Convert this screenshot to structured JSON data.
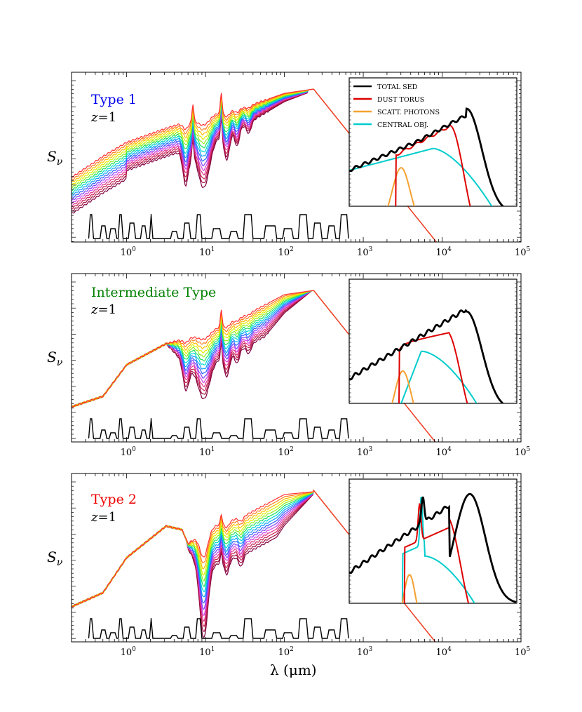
{
  "figure": {
    "x_axis_label": "λ (μm)",
    "y_axis_label": "S",
    "y_axis_label_sub": "ν",
    "x_ticks": [
      {
        "base": "10",
        "exp": "0"
      },
      {
        "base": "10",
        "exp": "1"
      },
      {
        "base": "10",
        "exp": "2"
      },
      {
        "base": "10",
        "exp": "3"
      },
      {
        "base": "10",
        "exp": "4"
      },
      {
        "base": "10",
        "exp": "5"
      }
    ],
    "redshift_label": "z",
    "redshift_value": "=1"
  },
  "colors": {
    "total": "#000000",
    "torus": "#dd0000",
    "scatt": "#f5a030",
    "central": "#00cccc",
    "type1_title": "#0000ee",
    "intermediate_title": "#008000",
    "type2_title": "#ee0000"
  },
  "legend": {
    "items": [
      {
        "label": "TOTAL SED",
        "color": "#000000"
      },
      {
        "label": "DUST TORUS",
        "color": "#dd0000"
      },
      {
        "label": "SCATT. PHOTONS",
        "color": "#f5a030"
      },
      {
        "label": "CENTRAL OBJ.",
        "color": "#00cccc"
      }
    ]
  },
  "panels": [
    {
      "title": "Type 1",
      "title_color": "#0000ee"
    },
    {
      "title": "Intermediate Type",
      "title_color": "#008000"
    },
    {
      "title": "Type 2",
      "title_color": "#ee0000"
    }
  ],
  "chart_data": [
    {
      "type": "line",
      "title": "Type 1",
      "xlabel": "λ (μm)",
      "ylabel": "Sν",
      "xscale": "log",
      "xlim": [
        0.2,
        100000
      ],
      "x_ticks": [
        1,
        10,
        100,
        1000,
        10000,
        100000
      ],
      "series_count": 15,
      "peak_wavelength": 230,
      "legend_position": "inset top-right",
      "inset_series": [
        "TOTAL SED",
        "DUST TORUS",
        "SCATT. PHOTONS",
        "CENTRAL OBJ."
      ]
    },
    {
      "type": "line",
      "title": "Intermediate Type",
      "xlabel": "λ (μm)",
      "ylabel": "Sν",
      "xscale": "log",
      "xlim": [
        0.2,
        100000
      ],
      "x_ticks": [
        1,
        10,
        100,
        1000,
        10000,
        100000
      ],
      "series_count": 15,
      "peak_wavelength": 230,
      "inset_series": [
        "TOTAL SED",
        "DUST TORUS",
        "SCATT. PHOTONS",
        "CENTRAL OBJ."
      ]
    },
    {
      "type": "line",
      "title": "Type 2",
      "xlabel": "λ (μm)",
      "ylabel": "Sν",
      "xscale": "log",
      "xlim": [
        0.2,
        100000
      ],
      "x_ticks": [
        1,
        10,
        100,
        1000,
        10000,
        100000
      ],
      "series_count": 15,
      "peak_wavelength": 230,
      "inset_series": [
        "TOTAL SED",
        "DUST TORUS",
        "SCATT. PHOTONS",
        "CENTRAL OBJ."
      ]
    }
  ]
}
